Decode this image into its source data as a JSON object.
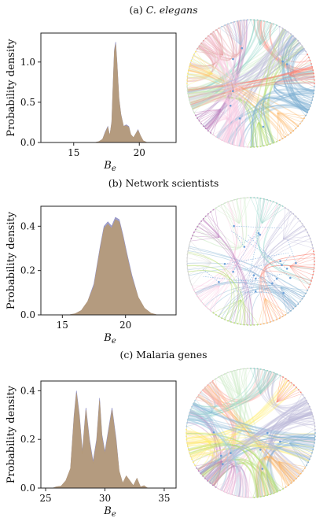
{
  "panels": [
    {
      "title_prefix": "(a) ",
      "title_main": "C. elegans",
      "title_italic": true,
      "chart_data": {
        "type": "area",
        "title": "(a) C. elegans",
        "xlabel": "B_e",
        "ylabel": "Probability density",
        "xlim": [
          12.5,
          22.8
        ],
        "ylim": [
          0,
          1.36
        ],
        "xticks": [
          15,
          20
        ],
        "yticks": [
          0.0,
          0.5,
          1.0
        ],
        "ytick_labels": [
          "0.0",
          "0.5",
          "1.0"
        ],
        "series": [
          {
            "color": "#8f8fc4",
            "x": [
              16.6,
              16.9,
              17.2,
              17.4,
              17.6,
              17.75,
              17.9,
              18.0,
              18.1,
              18.2,
              18.3,
              18.45,
              18.6,
              18.8,
              19.0,
              19.2,
              19.35,
              19.55,
              19.7,
              19.9,
              20.1,
              20.3,
              20.6
            ],
            "y": [
              0.0,
              0.01,
              0.04,
              0.13,
              0.2,
              0.08,
              0.26,
              0.72,
              1.15,
              1.25,
              1.0,
              0.55,
              0.35,
              0.2,
              0.22,
              0.2,
              0.1,
              0.06,
              0.1,
              0.16,
              0.08,
              0.02,
              0.0
            ]
          },
          {
            "color": "#b59a78",
            "x": [
              16.6,
              16.9,
              17.2,
              17.4,
              17.6,
              17.75,
              17.9,
              18.0,
              18.1,
              18.2,
              18.3,
              18.45,
              18.6,
              18.8,
              19.0,
              19.2,
              19.35,
              19.55,
              19.7,
              19.9,
              20.1,
              20.3,
              20.6
            ],
            "y": [
              0.0,
              0.01,
              0.04,
              0.12,
              0.19,
              0.08,
              0.25,
              0.7,
              1.13,
              1.22,
              0.98,
              0.54,
              0.34,
              0.2,
              0.21,
              0.19,
              0.1,
              0.06,
              0.1,
              0.15,
              0.08,
              0.02,
              0.0
            ]
          }
        ]
      },
      "colors": [
        "#8dd3c7",
        "#bebada",
        "#fb8072",
        "#80b1d3",
        "#fdb462",
        "#b3de69",
        "#fccde5",
        "#bc80bd",
        "#ccebc5",
        "#ffed6f",
        "#e5a0a0",
        "#a0c0e0"
      ]
    },
    {
      "title_prefix": "(b) ",
      "title_main": "Network scientists",
      "title_italic": false,
      "chart_data": {
        "type": "area",
        "title": "(b) Network scientists",
        "xlabel": "B_e",
        "ylabel": "Probability density",
        "xlim": [
          13.3,
          24.0
        ],
        "ylim": [
          0,
          0.49
        ],
        "xticks": [
          15,
          20
        ],
        "yticks": [
          0.0,
          0.2,
          0.4
        ],
        "ytick_labels": [
          "0.0",
          "0.2",
          "0.4"
        ],
        "series": [
          {
            "color": "#8f8fc4",
            "x": [
              15.5,
              16.0,
              16.5,
              17.0,
              17.5,
              18.0,
              18.3,
              18.6,
              18.9,
              19.2,
              19.5,
              19.8,
              20.1,
              20.5,
              21.0,
              21.5,
              22.0,
              22.5
            ],
            "y": [
              0.0,
              0.005,
              0.02,
              0.06,
              0.14,
              0.31,
              0.4,
              0.42,
              0.4,
              0.44,
              0.43,
              0.36,
              0.28,
              0.18,
              0.08,
              0.03,
              0.008,
              0.0
            ]
          },
          {
            "color": "#b59a78",
            "x": [
              15.5,
              16.0,
              16.5,
              17.0,
              17.5,
              18.0,
              18.3,
              18.6,
              18.9,
              19.2,
              19.5,
              19.8,
              20.1,
              20.5,
              21.0,
              21.5,
              22.0,
              22.5
            ],
            "y": [
              0.0,
              0.005,
              0.02,
              0.06,
              0.13,
              0.3,
              0.39,
              0.41,
              0.39,
              0.43,
              0.42,
              0.35,
              0.27,
              0.17,
              0.08,
              0.03,
              0.008,
              0.0
            ]
          }
        ]
      },
      "colors": [
        "#8dd3c7",
        "#bebada",
        "#fb8072",
        "#80b1d3",
        "#fdb462",
        "#b3de69",
        "#fccde5",
        "#d9d9d9",
        "#bc80bd",
        "#ccebc5"
      ]
    },
    {
      "title_prefix": "(c) ",
      "title_main": "Malaria genes",
      "title_italic": false,
      "chart_data": {
        "type": "area",
        "title": "(c) Malaria genes",
        "xlabel": "B_e",
        "ylabel": "Probability density",
        "xlim": [
          24.6,
          36.0
        ],
        "ylim": [
          0,
          0.44
        ],
        "xticks": [
          25,
          30,
          35
        ],
        "yticks": [
          0.0,
          0.2,
          0.4
        ],
        "ytick_labels": [
          "0.0",
          "0.2",
          "0.4"
        ],
        "series": [
          {
            "color": "#8f8fc4",
            "x": [
              25.6,
              25.9,
              26.3,
              26.7,
              27.1,
              27.4,
              27.6,
              27.85,
              28.1,
              28.4,
              28.7,
              29.0,
              29.3,
              29.55,
              29.75,
              30.0,
              30.3,
              30.6,
              30.95,
              31.2,
              31.5,
              31.8,
              32.1,
              32.4,
              32.7,
              33.0,
              33.3,
              33.6
            ],
            "y": [
              0.0,
              0.005,
              0.008,
              0.03,
              0.08,
              0.3,
              0.4,
              0.3,
              0.15,
              0.33,
              0.2,
              0.11,
              0.2,
              0.37,
              0.22,
              0.15,
              0.24,
              0.33,
              0.2,
              0.07,
              0.02,
              0.05,
              0.03,
              0.01,
              0.04,
              0.005,
              0.01,
              0.0
            ]
          },
          {
            "color": "#b59a78",
            "x": [
              25.6,
              25.9,
              26.3,
              26.7,
              27.1,
              27.4,
              27.6,
              27.85,
              28.1,
              28.4,
              28.7,
              29.0,
              29.3,
              29.55,
              29.75,
              30.0,
              30.3,
              30.6,
              30.95,
              31.2,
              31.5,
              31.8,
              32.1,
              32.4,
              32.7,
              33.0,
              33.3,
              33.6
            ],
            "y": [
              0.0,
              0.005,
              0.008,
              0.03,
              0.08,
              0.29,
              0.39,
              0.29,
              0.14,
              0.32,
              0.19,
              0.1,
              0.19,
              0.36,
              0.21,
              0.14,
              0.23,
              0.32,
              0.19,
              0.07,
              0.02,
              0.05,
              0.03,
              0.01,
              0.04,
              0.005,
              0.01,
              0.0
            ]
          }
        ]
      },
      "colors": [
        "#8dd3c7",
        "#fb8072",
        "#bebada",
        "#80b1d3",
        "#fdb462",
        "#b3de69",
        "#fccde5",
        "#bc80bd",
        "#ffed6f",
        "#a6cee3",
        "#fbb4ae",
        "#ccebc5"
      ]
    }
  ]
}
